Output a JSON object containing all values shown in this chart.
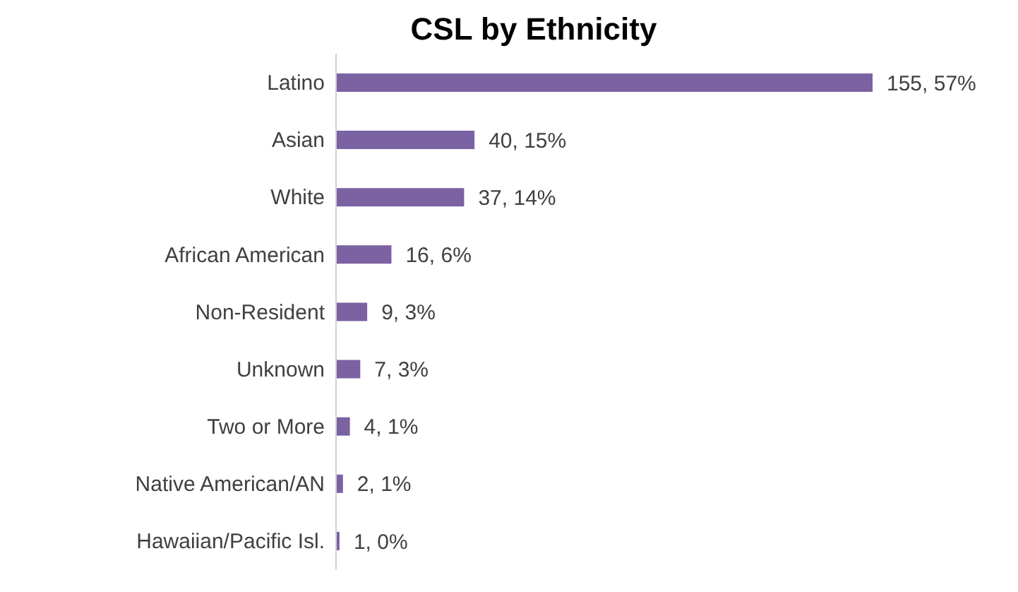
{
  "chart_data": {
    "type": "bar",
    "orientation": "horizontal",
    "title": "CSL by Ethnicity",
    "categories": [
      "Latino",
      "Asian",
      "White",
      "African American",
      "Non-Resident",
      "Unknown",
      "Two or More",
      "Native American/AN",
      "Hawaiian/Pacific Isl."
    ],
    "values": [
      155,
      40,
      37,
      16,
      9,
      7,
      4,
      2,
      1
    ],
    "value_labels": [
      "155, 57%",
      "40, 15%",
      "37, 14%",
      "16, 6%",
      "9, 3%",
      "7, 3%",
      "4, 1%",
      "2, 1%",
      "1, 0%"
    ],
    "color": "#7b62a3",
    "grid": false,
    "legend": false
  }
}
